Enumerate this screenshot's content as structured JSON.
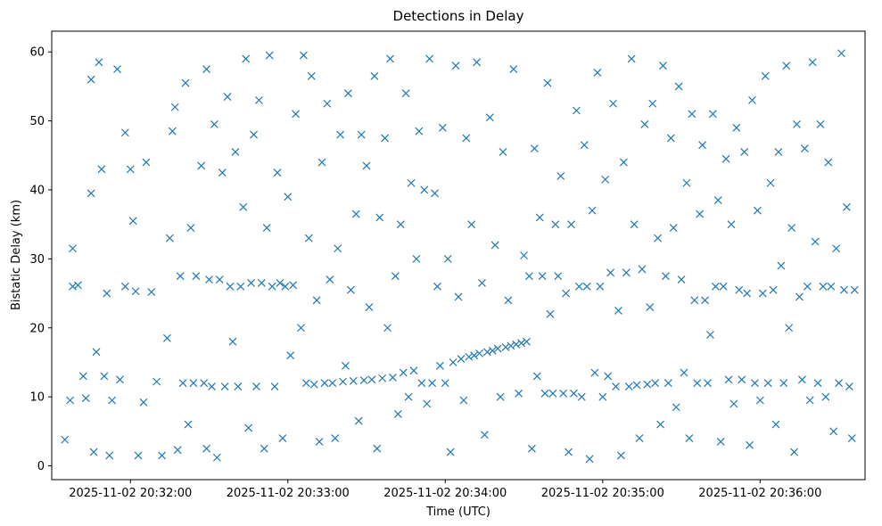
{
  "chart_data": {
    "type": "scatter",
    "title": "Detections in Delay",
    "xlabel": "Time (UTC)",
    "ylabel": "Bistatic Delay (km)",
    "xlim": [
      "2025-11-02 20:31:30",
      "2025-11-02 20:36:40"
    ],
    "ylim": [
      -2,
      63
    ],
    "xticks": [
      "2025-11-02 20:32:00",
      "2025-11-02 20:33:00",
      "2025-11-02 20:34:00",
      "2025-11-02 20:35:00",
      "2025-11-02 20:36:00"
    ],
    "yticks": [
      "0",
      "10",
      "20",
      "30",
      "40",
      "50",
      "60"
    ],
    "marker": "x",
    "color": "#1f77b4",
    "grid": false,
    "points": [
      [
        "20:31:35",
        3.8
      ],
      [
        "20:31:37",
        9.5
      ],
      [
        "20:31:38",
        26.0
      ],
      [
        "20:31:38",
        31.5
      ],
      [
        "20:31:40",
        26.2
      ],
      [
        "20:31:42",
        13.0
      ],
      [
        "20:31:43",
        9.8
      ],
      [
        "20:31:45",
        56.0
      ],
      [
        "20:31:45",
        39.5
      ],
      [
        "20:31:46",
        2.0
      ],
      [
        "20:31:47",
        16.5
      ],
      [
        "20:31:48",
        58.5
      ],
      [
        "20:31:49",
        43.0
      ],
      [
        "20:31:50",
        13.0
      ],
      [
        "20:31:51",
        25.0
      ],
      [
        "20:31:52",
        1.5
      ],
      [
        "20:31:53",
        9.5
      ],
      [
        "20:31:55",
        57.5
      ],
      [
        "20:31:56",
        12.5
      ],
      [
        "20:31:58",
        48.3
      ],
      [
        "20:31:58",
        26.0
      ],
      [
        "20:32:00",
        43.0
      ],
      [
        "20:32:01",
        35.5
      ],
      [
        "20:32:02",
        25.3
      ],
      [
        "20:32:03",
        1.5
      ],
      [
        "20:32:05",
        9.2
      ],
      [
        "20:32:06",
        44.0
      ],
      [
        "20:32:08",
        25.2
      ],
      [
        "20:32:10",
        12.2
      ],
      [
        "20:32:12",
        1.5
      ],
      [
        "20:32:14",
        18.5
      ],
      [
        "20:32:15",
        33.0
      ],
      [
        "20:32:16",
        48.5
      ],
      [
        "20:32:17",
        52.0
      ],
      [
        "20:32:18",
        2.3
      ],
      [
        "20:32:19",
        27.5
      ],
      [
        "20:32:20",
        12.0
      ],
      [
        "20:32:21",
        55.5
      ],
      [
        "20:32:22",
        6.0
      ],
      [
        "20:32:23",
        34.5
      ],
      [
        "20:32:24",
        12.0
      ],
      [
        "20:32:25",
        27.5
      ],
      [
        "20:32:27",
        43.5
      ],
      [
        "20:32:28",
        12.0
      ],
      [
        "20:32:29",
        57.5
      ],
      [
        "20:32:29",
        2.5
      ],
      [
        "20:32:30",
        27.0
      ],
      [
        "20:32:31",
        11.5
      ],
      [
        "20:32:32",
        49.5
      ],
      [
        "20:32:33",
        1.2
      ],
      [
        "20:32:34",
        27.0
      ],
      [
        "20:32:35",
        42.5
      ],
      [
        "20:32:36",
        11.5
      ],
      [
        "20:32:37",
        53.5
      ],
      [
        "20:32:38",
        26.0
      ],
      [
        "20:32:39",
        18.0
      ],
      [
        "20:32:40",
        45.5
      ],
      [
        "20:32:41",
        11.5
      ],
      [
        "20:32:42",
        26.0
      ],
      [
        "20:32:43",
        37.5
      ],
      [
        "20:32:44",
        59.0
      ],
      [
        "20:32:45",
        5.5
      ],
      [
        "20:32:46",
        26.5
      ],
      [
        "20:32:47",
        48.0
      ],
      [
        "20:32:48",
        11.5
      ],
      [
        "20:32:49",
        53.0
      ],
      [
        "20:32:50",
        26.5
      ],
      [
        "20:32:51",
        2.5
      ],
      [
        "20:32:52",
        34.5
      ],
      [
        "20:32:53",
        59.5
      ],
      [
        "20:32:54",
        26.0
      ],
      [
        "20:32:55",
        11.5
      ],
      [
        "20:32:56",
        42.5
      ],
      [
        "20:32:57",
        26.5
      ],
      [
        "20:32:58",
        4.0
      ],
      [
        "20:32:59",
        26.0
      ],
      [
        "20:33:00",
        39.0
      ],
      [
        "20:33:01",
        16.0
      ],
      [
        "20:33:02",
        26.2
      ],
      [
        "20:33:03",
        51.0
      ],
      [
        "20:33:05",
        20.0
      ],
      [
        "20:33:06",
        59.5
      ],
      [
        "20:33:07",
        12.0
      ],
      [
        "20:33:08",
        33.0
      ],
      [
        "20:33:09",
        56.5
      ],
      [
        "20:33:10",
        11.8
      ],
      [
        "20:33:11",
        24.0
      ],
      [
        "20:33:12",
        3.5
      ],
      [
        "20:33:13",
        44.0
      ],
      [
        "20:33:14",
        12.0
      ],
      [
        "20:33:15",
        52.5
      ],
      [
        "20:33:16",
        27.0
      ],
      [
        "20:33:17",
        12.0
      ],
      [
        "20:33:18",
        4.0
      ],
      [
        "20:33:19",
        31.5
      ],
      [
        "20:33:20",
        48.0
      ],
      [
        "20:33:21",
        12.2
      ],
      [
        "20:33:22",
        14.5
      ],
      [
        "20:33:23",
        54.0
      ],
      [
        "20:33:24",
        25.5
      ],
      [
        "20:33:25",
        12.3
      ],
      [
        "20:33:26",
        36.5
      ],
      [
        "20:33:27",
        6.5
      ],
      [
        "20:33:28",
        48.0
      ],
      [
        "20:33:29",
        12.4
      ],
      [
        "20:33:30",
        43.5
      ],
      [
        "20:33:31",
        23.0
      ],
      [
        "20:33:32",
        12.5
      ],
      [
        "20:33:33",
        56.5
      ],
      [
        "20:33:34",
        2.5
      ],
      [
        "20:33:35",
        36.0
      ],
      [
        "20:33:36",
        12.7
      ],
      [
        "20:33:37",
        47.5
      ],
      [
        "20:33:38",
        20.0
      ],
      [
        "20:33:39",
        59.0
      ],
      [
        "20:33:40",
        12.8
      ],
      [
        "20:33:41",
        27.5
      ],
      [
        "20:33:42",
        7.5
      ],
      [
        "20:33:43",
        35.0
      ],
      [
        "20:33:44",
        13.5
      ],
      [
        "20:33:45",
        54.0
      ],
      [
        "20:33:46",
        10.0
      ],
      [
        "20:33:47",
        41.0
      ],
      [
        "20:33:48",
        13.8
      ],
      [
        "20:33:49",
        30.0
      ],
      [
        "20:33:50",
        48.5
      ],
      [
        "20:33:51",
        12.0
      ],
      [
        "20:33:52",
        40.0
      ],
      [
        "20:33:53",
        9.0
      ],
      [
        "20:33:54",
        59.0
      ],
      [
        "20:33:55",
        12.0
      ],
      [
        "20:33:56",
        39.5
      ],
      [
        "20:33:57",
        26.0
      ],
      [
        "20:33:58",
        14.5
      ],
      [
        "20:33:59",
        49.0
      ],
      [
        "20:34:00",
        12.0
      ],
      [
        "20:34:01",
        30.0
      ],
      [
        "20:34:02",
        2.0
      ],
      [
        "20:34:03",
        15.0
      ],
      [
        "20:34:04",
        58.0
      ],
      [
        "20:34:05",
        24.5
      ],
      [
        "20:34:06",
        15.5
      ],
      [
        "20:34:07",
        9.5
      ],
      [
        "20:34:08",
        47.5
      ],
      [
        "20:34:09",
        15.8
      ],
      [
        "20:34:10",
        35.0
      ],
      [
        "20:34:11",
        16.0
      ],
      [
        "20:34:12",
        58.5
      ],
      [
        "20:34:13",
        16.3
      ],
      [
        "20:34:14",
        26.5
      ],
      [
        "20:34:15",
        4.5
      ],
      [
        "20:34:16",
        16.5
      ],
      [
        "20:34:17",
        50.5
      ],
      [
        "20:34:18",
        16.7
      ],
      [
        "20:34:19",
        32.0
      ],
      [
        "20:34:20",
        17.0
      ],
      [
        "20:34:21",
        10.0
      ],
      [
        "20:34:22",
        45.5
      ],
      [
        "20:34:23",
        17.2
      ],
      [
        "20:34:24",
        24.0
      ],
      [
        "20:34:25",
        17.4
      ],
      [
        "20:34:26",
        57.5
      ],
      [
        "20:34:27",
        17.6
      ],
      [
        "20:34:28",
        10.5
      ],
      [
        "20:34:29",
        17.8
      ],
      [
        "20:34:30",
        30.5
      ],
      [
        "20:34:31",
        18.0
      ],
      [
        "20:34:32",
        27.5
      ],
      [
        "20:34:33",
        2.5
      ],
      [
        "20:34:34",
        46.0
      ],
      [
        "20:34:35",
        13.0
      ],
      [
        "20:34:36",
        36.0
      ],
      [
        "20:34:37",
        27.5
      ],
      [
        "20:34:38",
        10.5
      ],
      [
        "20:34:39",
        55.5
      ],
      [
        "20:34:40",
        22.0
      ],
      [
        "20:34:41",
        10.5
      ],
      [
        "20:34:42",
        35.0
      ],
      [
        "20:34:43",
        27.5
      ],
      [
        "20:34:44",
        42.0
      ],
      [
        "20:34:45",
        10.5
      ],
      [
        "20:34:46",
        25.0
      ],
      [
        "20:34:47",
        2.0
      ],
      [
        "20:34:48",
        35.0
      ],
      [
        "20:34:49",
        10.5
      ],
      [
        "20:34:50",
        51.5
      ],
      [
        "20:34:51",
        26.0
      ],
      [
        "20:34:52",
        10.0
      ],
      [
        "20:34:53",
        46.5
      ],
      [
        "20:34:54",
        26.0
      ],
      [
        "20:34:55",
        1.0
      ],
      [
        "20:34:56",
        37.0
      ],
      [
        "20:34:57",
        13.5
      ],
      [
        "20:34:58",
        57.0
      ],
      [
        "20:34:59",
        26.0
      ],
      [
        "20:35:00",
        10.0
      ],
      [
        "20:35:01",
        41.5
      ],
      [
        "20:35:02",
        13.0
      ],
      [
        "20:35:03",
        28.0
      ],
      [
        "20:35:04",
        52.5
      ],
      [
        "20:35:05",
        11.5
      ],
      [
        "20:35:06",
        22.5
      ],
      [
        "20:35:07",
        1.5
      ],
      [
        "20:35:08",
        44.0
      ],
      [
        "20:35:09",
        28.0
      ],
      [
        "20:35:10",
        11.5
      ],
      [
        "20:35:11",
        59.0
      ],
      [
        "20:35:12",
        35.0
      ],
      [
        "20:35:13",
        11.7
      ],
      [
        "20:35:14",
        4.0
      ],
      [
        "20:35:15",
        28.5
      ],
      [
        "20:35:16",
        49.5
      ],
      [
        "20:35:17",
        11.8
      ],
      [
        "20:35:18",
        23.0
      ],
      [
        "20:35:19",
        52.5
      ],
      [
        "20:35:20",
        12.0
      ],
      [
        "20:35:21",
        33.0
      ],
      [
        "20:35:22",
        6.0
      ],
      [
        "20:35:23",
        58.0
      ],
      [
        "20:35:24",
        27.5
      ],
      [
        "20:35:25",
        12.0
      ],
      [
        "20:35:26",
        47.5
      ],
      [
        "20:35:27",
        34.5
      ],
      [
        "20:35:28",
        8.5
      ],
      [
        "20:35:29",
        55.0
      ],
      [
        "20:35:30",
        27.0
      ],
      [
        "20:35:31",
        13.5
      ],
      [
        "20:35:32",
        41.0
      ],
      [
        "20:35:33",
        4.0
      ],
      [
        "20:35:34",
        51.0
      ],
      [
        "20:35:35",
        24.0
      ],
      [
        "20:35:36",
        12.0
      ],
      [
        "20:35:37",
        36.5
      ],
      [
        "20:35:38",
        46.5
      ],
      [
        "20:35:39",
        24.0
      ],
      [
        "20:35:40",
        12.0
      ],
      [
        "20:35:41",
        19.0
      ],
      [
        "20:35:42",
        51.0
      ],
      [
        "20:35:43",
        26.0
      ],
      [
        "20:35:44",
        38.5
      ],
      [
        "20:35:45",
        3.5
      ],
      [
        "20:35:46",
        26.0
      ],
      [
        "20:35:47",
        44.5
      ],
      [
        "20:35:48",
        12.5
      ],
      [
        "20:35:49",
        35.0
      ],
      [
        "20:35:50",
        9.0
      ],
      [
        "20:35:51",
        49.0
      ],
      [
        "20:35:52",
        25.5
      ],
      [
        "20:35:53",
        12.5
      ],
      [
        "20:35:54",
        45.5
      ],
      [
        "20:35:55",
        25.0
      ],
      [
        "20:35:56",
        3.0
      ],
      [
        "20:35:57",
        53.0
      ],
      [
        "20:35:58",
        12.0
      ],
      [
        "20:35:59",
        37.0
      ],
      [
        "20:36:00",
        9.5
      ],
      [
        "20:36:01",
        25.0
      ],
      [
        "20:36:02",
        56.5
      ],
      [
        "20:36:03",
        12.0
      ],
      [
        "20:36:04",
        41.0
      ],
      [
        "20:36:05",
        25.5
      ],
      [
        "20:36:06",
        6.0
      ],
      [
        "20:36:07",
        45.5
      ],
      [
        "20:36:08",
        29.0
      ],
      [
        "20:36:09",
        12.0
      ],
      [
        "20:36:10",
        58.0
      ],
      [
        "20:36:11",
        20.0
      ],
      [
        "20:36:12",
        34.5
      ],
      [
        "20:36:13",
        2.0
      ],
      [
        "20:36:14",
        49.5
      ],
      [
        "20:36:15",
        24.5
      ],
      [
        "20:36:16",
        12.5
      ],
      [
        "20:36:17",
        46.0
      ],
      [
        "20:36:18",
        26.0
      ],
      [
        "20:36:19",
        9.5
      ],
      [
        "20:36:20",
        58.5
      ],
      [
        "20:36:21",
        32.5
      ],
      [
        "20:36:22",
        12.0
      ],
      [
        "20:36:23",
        49.5
      ],
      [
        "20:36:24",
        26.0
      ],
      [
        "20:36:25",
        10.0
      ],
      [
        "20:36:26",
        44.0
      ],
      [
        "20:36:27",
        26.0
      ],
      [
        "20:36:28",
        5.0
      ],
      [
        "20:36:29",
        31.5
      ],
      [
        "20:36:30",
        12.0
      ],
      [
        "20:36:31",
        59.8
      ],
      [
        "20:36:32",
        25.5
      ],
      [
        "20:36:33",
        37.5
      ],
      [
        "20:36:34",
        11.5
      ],
      [
        "20:36:35",
        4.0
      ],
      [
        "20:36:36",
        25.5
      ]
    ]
  }
}
